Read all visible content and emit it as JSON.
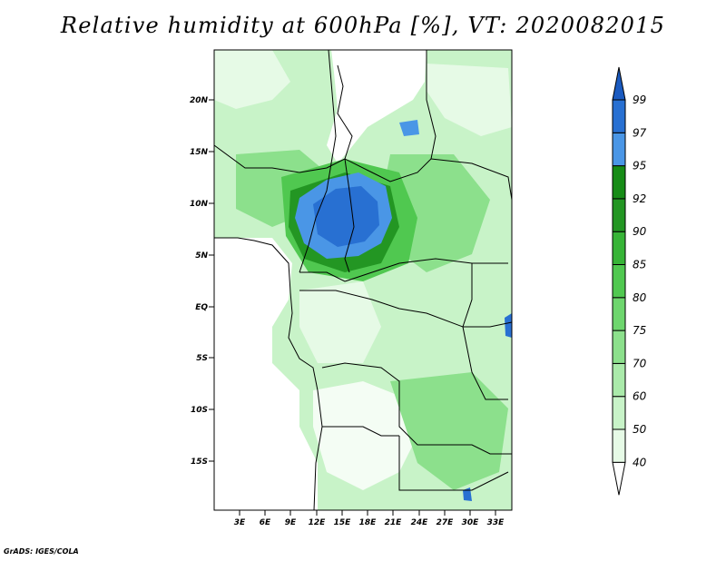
{
  "title": "Relative humidity at 600hPa [%], VT: 2020082015",
  "credit": "GrADS: IGES/COLA",
  "map": {
    "lat_labels": [
      "20N",
      "15N",
      "10N",
      "5N",
      "EQ",
      "5S",
      "10S",
      "15S"
    ],
    "lon_labels": [
      "3E",
      "6E",
      "9E",
      "12E",
      "15E",
      "18E",
      "21E",
      "24E",
      "27E",
      "30E",
      "33E"
    ]
  },
  "colorbar": {
    "levels": [
      "40",
      "50",
      "60",
      "70",
      "75",
      "80",
      "85",
      "90",
      "92",
      "95",
      "97",
      "99"
    ],
    "colors": [
      "#ffffff",
      "#e6fae6",
      "#c8f3c8",
      "#aaeaaa",
      "#8ce08c",
      "#6ed66e",
      "#50c850",
      "#37b437",
      "#239623",
      "#168c16",
      "#4a96e6",
      "#2870d2",
      "#1a5ac0"
    ]
  }
}
